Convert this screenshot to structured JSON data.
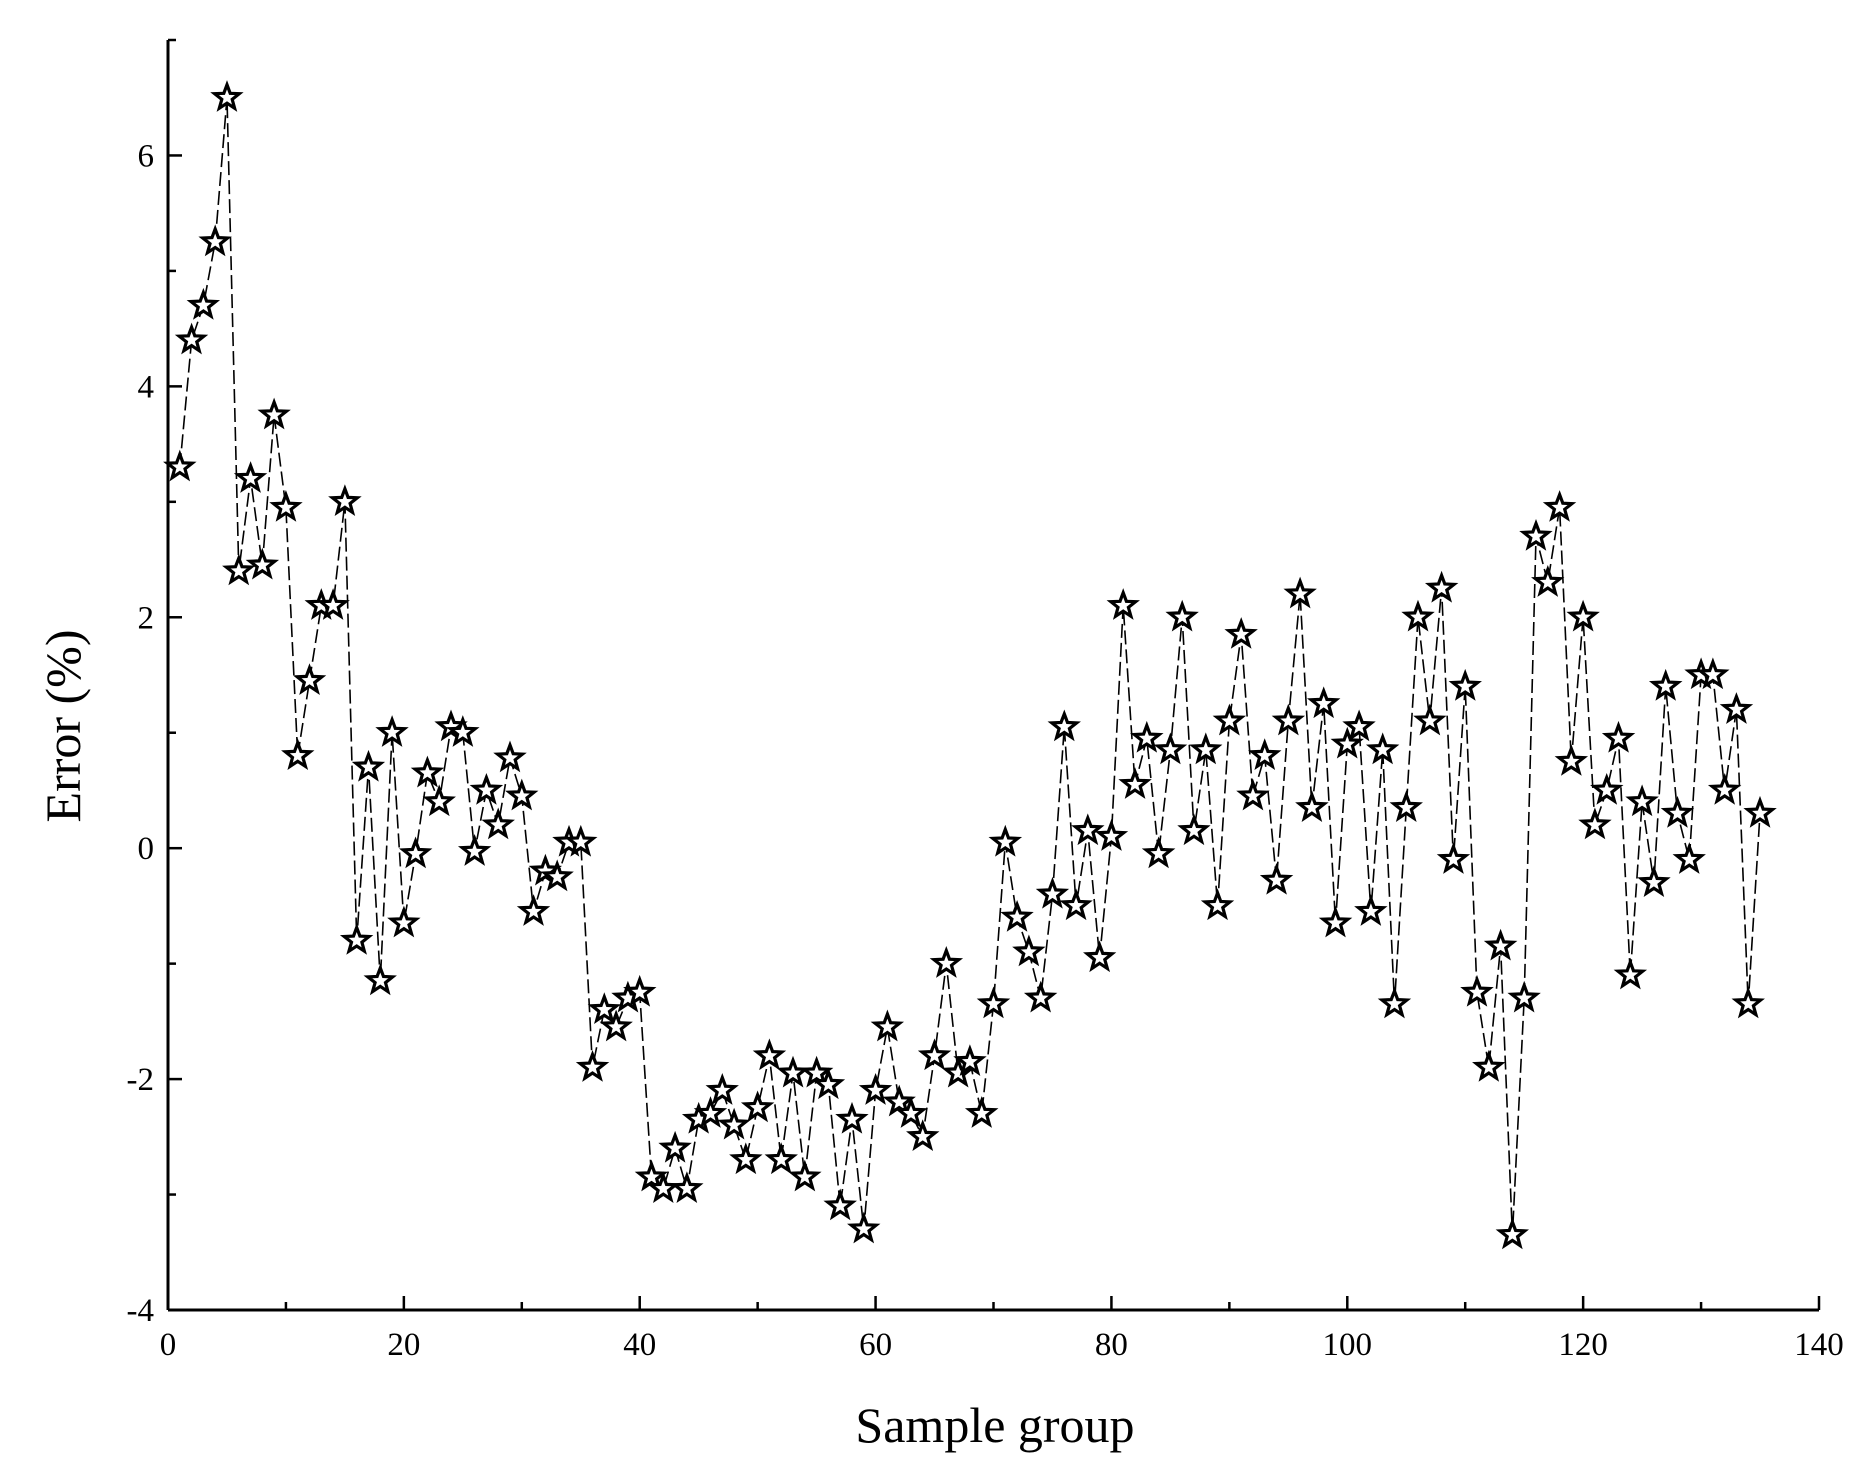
{
  "chart_data": {
    "type": "line",
    "title": "",
    "xlabel": "Sample group",
    "ylabel": "Error (%)",
    "xlim": [
      0,
      140
    ],
    "ylim": [
      -4,
      7
    ],
    "x_ticks": [
      0,
      20,
      40,
      60,
      80,
      100,
      120,
      140
    ],
    "y_ticks": [
      -4,
      -2,
      0,
      2,
      4,
      6
    ],
    "x_tick_labels": [
      "0",
      "20",
      "40",
      "60",
      "80",
      "100",
      "120",
      "140"
    ],
    "y_tick_labels": [
      "-4",
      "-2",
      "0",
      "2",
      "4",
      "6"
    ],
    "grid": false,
    "legend": "none",
    "colors": {
      "line": "#000000",
      "marker_fill": "#ffffff",
      "marker_stroke": "#000000"
    },
    "series": [
      {
        "name": "Error",
        "marker": "star",
        "line_style": "dashed",
        "x": [
          1,
          2,
          3,
          4,
          5,
          6,
          7,
          8,
          9,
          10,
          11,
          12,
          13,
          14,
          15,
          16,
          17,
          18,
          19,
          20,
          21,
          22,
          23,
          24,
          25,
          26,
          27,
          28,
          29,
          30,
          31,
          32,
          33,
          34,
          35,
          36,
          37,
          38,
          39,
          40,
          41,
          42,
          43,
          44,
          45,
          46,
          47,
          48,
          49,
          50,
          51,
          52,
          53,
          54,
          55,
          56,
          57,
          58,
          59,
          60,
          61,
          62,
          63,
          64,
          65,
          66,
          67,
          68,
          69,
          70,
          71,
          72,
          73,
          74,
          75,
          76,
          77,
          78,
          79,
          80,
          81,
          82,
          83,
          84,
          85,
          86,
          87,
          88,
          89,
          90,
          91,
          92,
          93,
          94,
          95,
          96,
          97,
          98,
          99,
          100,
          101,
          102,
          103,
          104,
          105,
          106,
          107,
          108,
          109,
          110,
          111,
          112,
          113,
          114,
          115,
          116,
          117,
          118,
          119,
          120,
          121,
          122,
          123,
          124,
          125,
          126,
          127,
          128,
          129,
          130,
          131,
          132,
          133,
          134,
          135
        ],
        "values": [
          3.3,
          4.4,
          4.7,
          5.25,
          6.5,
          2.4,
          3.2,
          2.45,
          3.75,
          2.95,
          0.8,
          1.45,
          2.1,
          2.1,
          3.0,
          -0.8,
          0.7,
          -1.15,
          1.0,
          -0.65,
          -0.05,
          0.65,
          0.4,
          1.05,
          1.0,
          -0.03,
          0.5,
          0.2,
          0.78,
          0.45,
          -0.55,
          -0.2,
          -0.25,
          0.05,
          0.05,
          -1.9,
          -1.4,
          -1.55,
          -1.3,
          -1.25,
          -2.85,
          -2.95,
          -2.6,
          -2.95,
          -2.35,
          -2.3,
          -2.1,
          -2.4,
          -2.7,
          -2.25,
          -1.8,
          -2.7,
          -1.95,
          -2.85,
          -1.95,
          -2.05,
          -3.1,
          -2.35,
          -3.3,
          -2.1,
          -1.55,
          -2.2,
          -2.3,
          -2.5,
          -1.8,
          -1.0,
          -1.95,
          -1.85,
          -2.3,
          -1.35,
          0.05,
          -0.6,
          -0.9,
          -1.3,
          -0.4,
          1.05,
          -0.5,
          0.15,
          -0.95,
          0.1,
          2.1,
          0.55,
          0.95,
          -0.05,
          0.85,
          2.0,
          0.15,
          0.85,
          -0.5,
          1.1,
          1.85,
          0.45,
          0.8,
          -0.28,
          1.1,
          2.2,
          0.35,
          1.25,
          -0.65,
          0.9,
          1.05,
          -0.55,
          0.85,
          -1.35,
          0.35,
          2.0,
          1.1,
          2.25,
          -0.1,
          1.4,
          -1.25,
          -1.9,
          -0.85,
          -3.35,
          -1.3,
          2.7,
          2.3,
          2.95,
          0.75,
          2.0,
          0.2,
          0.5,
          0.95,
          -1.1,
          0.4,
          -0.3,
          1.4,
          0.3,
          -0.1,
          1.5,
          1.5,
          0.5,
          1.2,
          -1.35,
          0.3
        ]
      }
    ]
  }
}
